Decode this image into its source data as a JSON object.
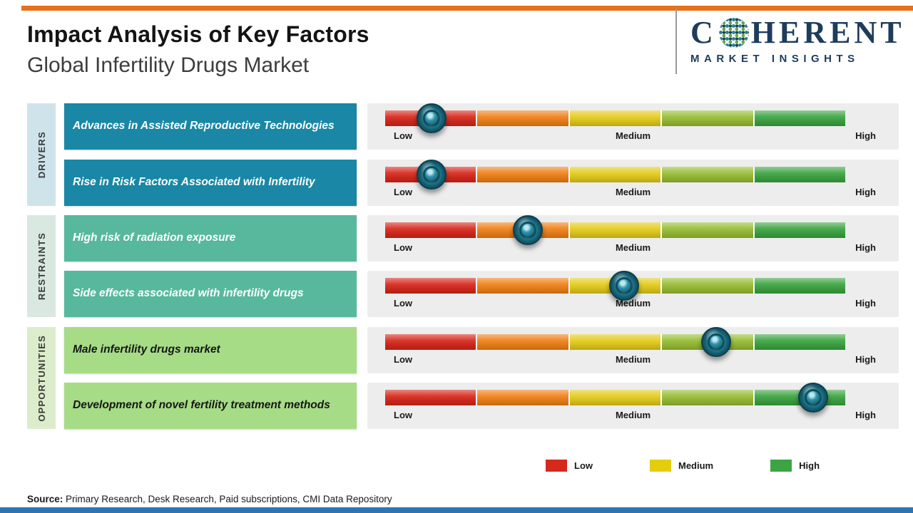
{
  "page": {
    "title": "Impact Analysis of Key Factors",
    "subtitle": "Global Infertility Drugs Market",
    "source_label": "Source:",
    "source_text": " Primary Research, Desk Research, Paid subscriptions, CMI Data Repository"
  },
  "logo": {
    "name_start": "C",
    "name_end": "HERENT",
    "tagline": "MARKET INSIGHTS"
  },
  "scale": {
    "low": "Low",
    "medium": "Medium",
    "high": "High"
  },
  "legend": [
    {
      "label": "Low",
      "color": "#d7281c"
    },
    {
      "label": "Medium",
      "color": "#e4cd0e"
    },
    {
      "label": "High",
      "color": "#3ca442"
    }
  ],
  "colors": {
    "top_bar": "#e8701a",
    "bottom_bar": "#2e75b6",
    "logo_navy": "#1e3c5c",
    "driver_box": "#1987a5",
    "restraint_box": "#57b89d",
    "opportunity_box": "#a6dc86",
    "driver_strip": "#cfe3ea",
    "restraint_strip": "#d9e8e1",
    "opportunity_strip": "#dcedcb",
    "panel_bg": "#ededed",
    "marker": "#135a6d",
    "bar_segments": [
      "#d7281c",
      "#ef8018",
      "#e3cb1c",
      "#97bd35",
      "#3ca442"
    ]
  },
  "groups": [
    {
      "label": "DRIVERS",
      "factors": [
        {
          "text": "Advances in Assisted Reproductive Technologies",
          "marker_pct": 10
        },
        {
          "text": "Rise in Risk Factors Associated with Infertility",
          "marker_pct": 10
        }
      ]
    },
    {
      "label": "RESTRAINTS",
      "factors": [
        {
          "text": "High risk of radiation exposure",
          "marker_pct": 31
        },
        {
          "text": "Side effects associated with infertility drugs",
          "marker_pct": 52
        }
      ]
    },
    {
      "label": "OPPORTUNITIES",
      "factors": [
        {
          "text": "Male infertility drugs market",
          "marker_pct": 72
        },
        {
          "text": "Development of novel fertility treatment methods",
          "marker_pct": 93
        }
      ]
    }
  ]
}
